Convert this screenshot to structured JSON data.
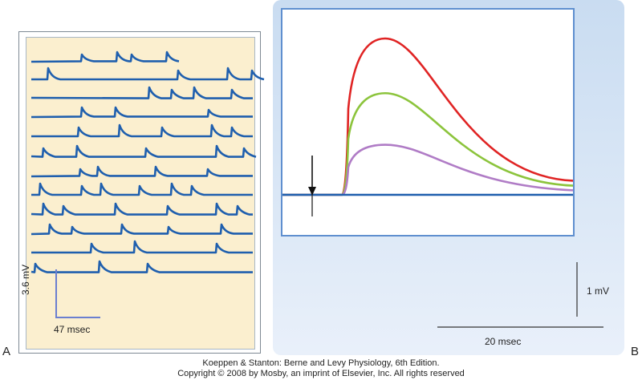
{
  "panel_a": {
    "letter": "A",
    "scale_vertical": "3.6 mV",
    "scale_horizontal": "47 msec",
    "trace_color": "#1f5fae",
    "trace_count": 12
  },
  "panel_b": {
    "letter": "B",
    "scale_vertical": "1 mV",
    "scale_horizontal": "20 msec",
    "plot_border_color": "#5f8fcf",
    "traces": [
      {
        "color": "#e02424",
        "relative_peak": 1.0
      },
      {
        "color": "#8cc43c",
        "relative_peak": 0.65
      },
      {
        "color": "#b07cc6",
        "relative_peak": 0.32
      },
      {
        "color": "#1f5fae",
        "relative_peak": 0.0
      }
    ]
  },
  "credit": {
    "line1": "Koeppen & Stanton: Berne and Levy Physiology, 6th Edition.",
    "line2": "Copyright © 2008 by Mosby, an imprint of Elsevier, Inc. All rights reserved"
  }
}
